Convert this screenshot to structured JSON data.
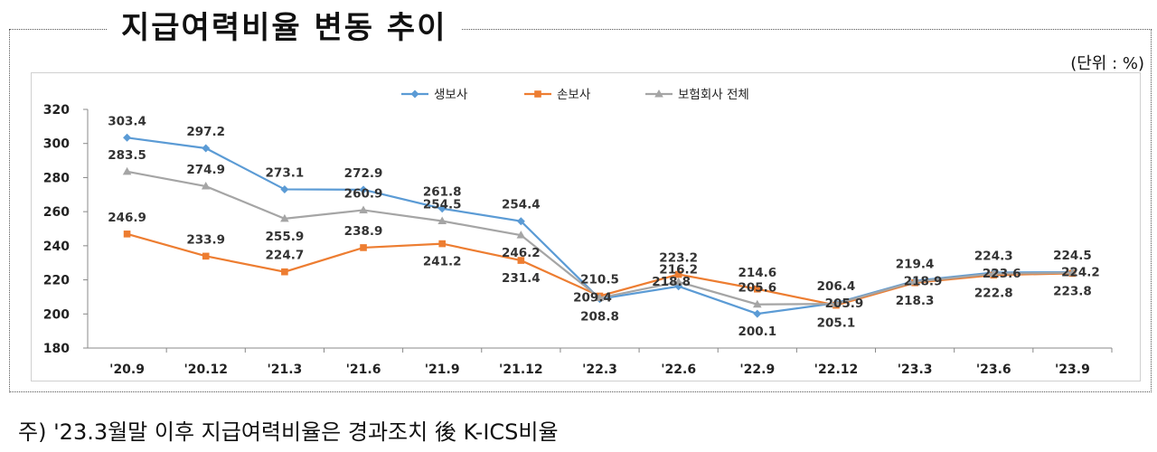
{
  "title": "지급여력비율 변동 추이",
  "unit": "(단위 : %)",
  "footnote": "주) '23.3월말 이후 지급여력비율은 경과조치 後 K-ICS비율",
  "chart_data": {
    "type": "line",
    "categories": [
      "'20.9",
      "'20.12",
      "'21.3",
      "'21.6",
      "'21.9",
      "'21.12",
      "'22.3",
      "'22.6",
      "'22.9",
      "'22.12",
      "'23.3",
      "'23.6",
      "'23.9"
    ],
    "ylim": [
      180,
      320
    ],
    "yticks": [
      180,
      200,
      220,
      240,
      260,
      280,
      300,
      320
    ],
    "grid": false,
    "legend_position": "top-center",
    "series": [
      {
        "name": "생보사",
        "color": "#5B9BD5",
        "marker": "diamond",
        "values": [
          303.4,
          297.2,
          273.1,
          272.9,
          261.8,
          254.4,
          208.8,
          216.2,
          200.1,
          206.4,
          219.4,
          224.3,
          224.5
        ]
      },
      {
        "name": "손보사",
        "color": "#ED7D31",
        "marker": "square",
        "values": [
          246.9,
          233.9,
          224.7,
          238.9,
          241.2,
          231.4,
          210.5,
          223.2,
          214.6,
          205.1,
          218.3,
          222.8,
          223.8
        ]
      },
      {
        "name": "보험회사 전체",
        "color": "#A5A5A5",
        "marker": "triangle",
        "values": [
          283.5,
          274.9,
          255.9,
          260.9,
          254.5,
          246.2,
          209.4,
          218.8,
          205.6,
          205.9,
          218.9,
          223.6,
          224.2
        ]
      }
    ]
  }
}
